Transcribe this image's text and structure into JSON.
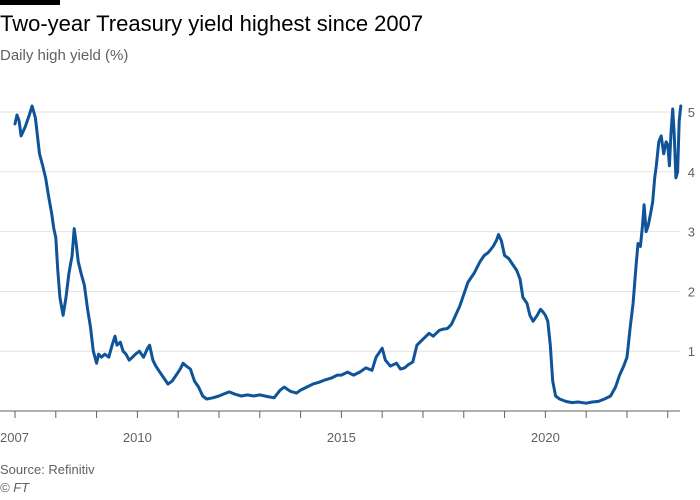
{
  "header": {
    "title": "Two-year Treasury yield highest since 2007",
    "subtitle": "Daily high yield (%)"
  },
  "footer": {
    "source": "Source: Refinitiv",
    "credit": "© FT"
  },
  "colors": {
    "line": "#0f5499",
    "grid": "#e6e2df",
    "axis": "#66605c",
    "text": "#33302e"
  },
  "chart_data": {
    "type": "line",
    "title": "Two-year Treasury yield highest since 2007",
    "subtitle": "Daily high yield (%)",
    "xlabel": "",
    "ylabel": "Daily high yield (%)",
    "xlim": [
      2007.0,
      2023.3
    ],
    "ylim": [
      0,
      5.2
    ],
    "grid": true,
    "y_ticks": [
      1,
      2,
      3,
      4,
      5
    ],
    "x_tick_labels": [
      {
        "value": 2007,
        "label": "2007"
      },
      {
        "value": 2010,
        "label": "2010"
      },
      {
        "value": 2015,
        "label": "2015"
      },
      {
        "value": 2020,
        "label": "2020"
      }
    ],
    "series": [
      {
        "name": "Two-year Treasury yield",
        "points": [
          [
            2007.0,
            4.8
          ],
          [
            2007.05,
            4.95
          ],
          [
            2007.1,
            4.85
          ],
          [
            2007.15,
            4.6
          ],
          [
            2007.25,
            4.75
          ],
          [
            2007.35,
            4.95
          ],
          [
            2007.42,
            5.1
          ],
          [
            2007.5,
            4.9
          ],
          [
            2007.6,
            4.3
          ],
          [
            2007.68,
            4.1
          ],
          [
            2007.75,
            3.9
          ],
          [
            2007.82,
            3.6
          ],
          [
            2007.9,
            3.3
          ],
          [
            2007.95,
            3.05
          ],
          [
            2008.0,
            2.9
          ],
          [
            2008.05,
            2.35
          ],
          [
            2008.1,
            1.9
          ],
          [
            2008.18,
            1.6
          ],
          [
            2008.25,
            1.9
          ],
          [
            2008.32,
            2.3
          ],
          [
            2008.4,
            2.6
          ],
          [
            2008.45,
            3.05
          ],
          [
            2008.5,
            2.8
          ],
          [
            2008.55,
            2.5
          ],
          [
            2008.62,
            2.3
          ],
          [
            2008.7,
            2.1
          ],
          [
            2008.78,
            1.7
          ],
          [
            2008.85,
            1.4
          ],
          [
            2008.92,
            1.0
          ],
          [
            2009.0,
            0.8
          ],
          [
            2009.05,
            0.95
          ],
          [
            2009.12,
            0.9
          ],
          [
            2009.2,
            0.95
          ],
          [
            2009.3,
            0.9
          ],
          [
            2009.38,
            1.1
          ],
          [
            2009.45,
            1.25
          ],
          [
            2009.5,
            1.1
          ],
          [
            2009.58,
            1.15
          ],
          [
            2009.65,
            1.0
          ],
          [
            2009.72,
            0.95
          ],
          [
            2009.8,
            0.85
          ],
          [
            2009.88,
            0.9
          ],
          [
            2009.95,
            0.95
          ],
          [
            2010.05,
            1.0
          ],
          [
            2010.15,
            0.9
          ],
          [
            2010.25,
            1.05
          ],
          [
            2010.3,
            1.1
          ],
          [
            2010.38,
            0.85
          ],
          [
            2010.45,
            0.75
          ],
          [
            2010.55,
            0.65
          ],
          [
            2010.65,
            0.55
          ],
          [
            2010.75,
            0.45
          ],
          [
            2010.85,
            0.5
          ],
          [
            2010.95,
            0.6
          ],
          [
            2011.05,
            0.7
          ],
          [
            2011.12,
            0.8
          ],
          [
            2011.2,
            0.75
          ],
          [
            2011.3,
            0.7
          ],
          [
            2011.4,
            0.5
          ],
          [
            2011.5,
            0.4
          ],
          [
            2011.6,
            0.25
          ],
          [
            2011.7,
            0.2
          ],
          [
            2011.85,
            0.22
          ],
          [
            2012.0,
            0.25
          ],
          [
            2012.1,
            0.28
          ],
          [
            2012.25,
            0.32
          ],
          [
            2012.4,
            0.28
          ],
          [
            2012.55,
            0.25
          ],
          [
            2012.7,
            0.27
          ],
          [
            2012.85,
            0.25
          ],
          [
            2013.0,
            0.27
          ],
          [
            2013.2,
            0.24
          ],
          [
            2013.35,
            0.22
          ],
          [
            2013.5,
            0.35
          ],
          [
            2013.6,
            0.4
          ],
          [
            2013.75,
            0.33
          ],
          [
            2013.9,
            0.3
          ],
          [
            2014.0,
            0.35
          ],
          [
            2014.15,
            0.4
          ],
          [
            2014.3,
            0.45
          ],
          [
            2014.45,
            0.48
          ],
          [
            2014.6,
            0.52
          ],
          [
            2014.75,
            0.55
          ],
          [
            2014.9,
            0.6
          ],
          [
            2015.0,
            0.6
          ],
          [
            2015.15,
            0.65
          ],
          [
            2015.3,
            0.6
          ],
          [
            2015.45,
            0.65
          ],
          [
            2015.6,
            0.72
          ],
          [
            2015.75,
            0.68
          ],
          [
            2015.85,
            0.9
          ],
          [
            2016.0,
            1.05
          ],
          [
            2016.08,
            0.85
          ],
          [
            2016.2,
            0.75
          ],
          [
            2016.35,
            0.8
          ],
          [
            2016.45,
            0.7
          ],
          [
            2016.55,
            0.72
          ],
          [
            2016.65,
            0.78
          ],
          [
            2016.75,
            0.82
          ],
          [
            2016.85,
            1.1
          ],
          [
            2017.0,
            1.2
          ],
          [
            2017.15,
            1.3
          ],
          [
            2017.25,
            1.25
          ],
          [
            2017.4,
            1.35
          ],
          [
            2017.5,
            1.37
          ],
          [
            2017.6,
            1.38
          ],
          [
            2017.7,
            1.45
          ],
          [
            2017.8,
            1.6
          ],
          [
            2017.9,
            1.75
          ],
          [
            2018.0,
            1.95
          ],
          [
            2018.1,
            2.15
          ],
          [
            2018.25,
            2.3
          ],
          [
            2018.4,
            2.5
          ],
          [
            2018.5,
            2.6
          ],
          [
            2018.6,
            2.65
          ],
          [
            2018.72,
            2.75
          ],
          [
            2018.8,
            2.85
          ],
          [
            2018.85,
            2.95
          ],
          [
            2018.92,
            2.85
          ],
          [
            2019.0,
            2.6
          ],
          [
            2019.1,
            2.55
          ],
          [
            2019.2,
            2.45
          ],
          [
            2019.3,
            2.35
          ],
          [
            2019.38,
            2.2
          ],
          [
            2019.45,
            1.9
          ],
          [
            2019.55,
            1.8
          ],
          [
            2019.62,
            1.6
          ],
          [
            2019.7,
            1.5
          ],
          [
            2019.8,
            1.6
          ],
          [
            2019.88,
            1.7
          ],
          [
            2019.95,
            1.65
          ],
          [
            2020.0,
            1.6
          ],
          [
            2020.06,
            1.5
          ],
          [
            2020.12,
            1.1
          ],
          [
            2020.18,
            0.5
          ],
          [
            2020.25,
            0.25
          ],
          [
            2020.35,
            0.2
          ],
          [
            2020.5,
            0.16
          ],
          [
            2020.65,
            0.14
          ],
          [
            2020.8,
            0.15
          ],
          [
            2021.0,
            0.13
          ],
          [
            2021.15,
            0.15
          ],
          [
            2021.3,
            0.16
          ],
          [
            2021.45,
            0.2
          ],
          [
            2021.6,
            0.25
          ],
          [
            2021.72,
            0.4
          ],
          [
            2021.82,
            0.6
          ],
          [
            2021.92,
            0.75
          ],
          [
            2022.0,
            0.9
          ],
          [
            2022.08,
            1.4
          ],
          [
            2022.15,
            1.8
          ],
          [
            2022.22,
            2.4
          ],
          [
            2022.27,
            2.8
          ],
          [
            2022.33,
            2.75
          ],
          [
            2022.38,
            3.1
          ],
          [
            2022.42,
            3.45
          ],
          [
            2022.47,
            3.0
          ],
          [
            2022.52,
            3.1
          ],
          [
            2022.58,
            3.3
          ],
          [
            2022.63,
            3.5
          ],
          [
            2022.68,
            3.9
          ],
          [
            2022.72,
            4.1
          ],
          [
            2022.78,
            4.5
          ],
          [
            2022.84,
            4.6
          ],
          [
            2022.9,
            4.3
          ],
          [
            2022.96,
            4.5
          ],
          [
            2023.0,
            4.45
          ],
          [
            2023.04,
            4.1
          ],
          [
            2023.08,
            4.65
          ],
          [
            2023.12,
            5.05
          ],
          [
            2023.16,
            4.6
          ],
          [
            2023.2,
            3.9
          ],
          [
            2023.24,
            4.0
          ],
          [
            2023.28,
            4.85
          ],
          [
            2023.32,
            5.1
          ]
        ]
      }
    ]
  }
}
